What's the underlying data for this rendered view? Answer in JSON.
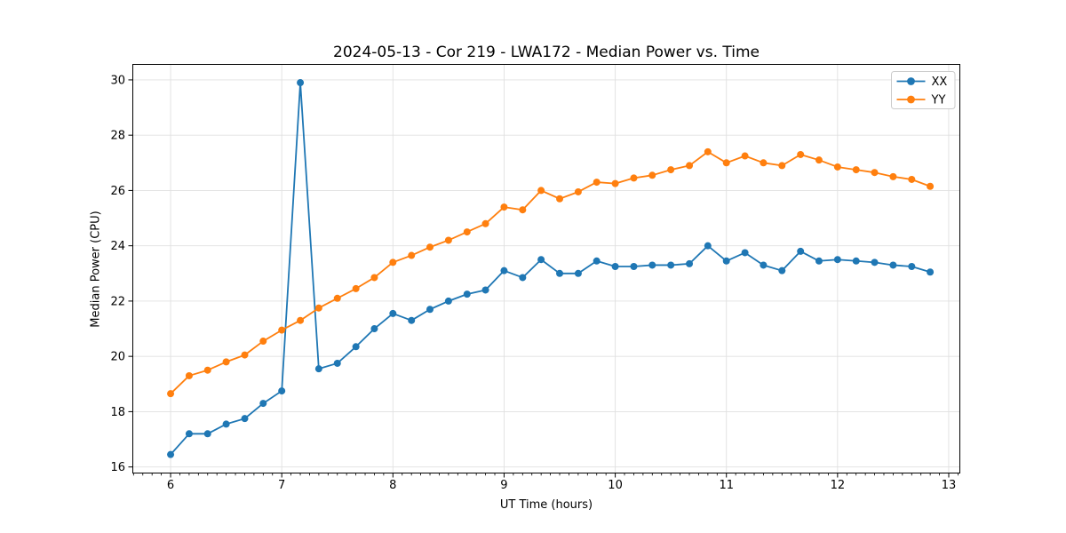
{
  "styles": {
    "background": "#ffffff",
    "grid_color": "#e0e0e0",
    "spine_color": "#000000",
    "tick_color": "#000000",
    "legend_border_color": "#cccccc",
    "legend_background": "#ffffff"
  },
  "chart_data": {
    "type": "line",
    "title": "2024-05-13 - Cor 219 - LWA172 - Median Power vs. Time",
    "xlabel": "UT Time (hours)",
    "ylabel": "Median Power (CPU)",
    "xlim": [
      5.66,
      13.1
    ],
    "ylim": [
      15.78,
      30.56
    ],
    "xticks": [
      6,
      7,
      8,
      9,
      10,
      11,
      12,
      13
    ],
    "yticks": [
      16,
      18,
      20,
      22,
      24,
      26,
      28,
      30
    ],
    "x_minor_tick_step": 0.0833,
    "grid": true,
    "legend_position": "upper right",
    "marker": "circle",
    "x": [
      6,
      6.167,
      6.333,
      6.5,
      6.667,
      6.833,
      7,
      7.167,
      7.333,
      7.5,
      7.667,
      7.833,
      8,
      8.167,
      8.333,
      8.5,
      8.667,
      8.833,
      9,
      9.167,
      9.333,
      9.5,
      9.667,
      9.833,
      10,
      10.167,
      10.333,
      10.5,
      10.667,
      10.833,
      11,
      11.167,
      11.333,
      11.5,
      11.667,
      11.833,
      12,
      12.167,
      12.333,
      12.5,
      12.667,
      12.833
    ],
    "series": [
      {
        "name": "XX",
        "color": "#1f77b4",
        "values": [
          16.45,
          17.2,
          17.2,
          17.55,
          17.75,
          18.3,
          18.75,
          29.9,
          19.55,
          19.75,
          20.35,
          21.0,
          21.55,
          21.3,
          21.7,
          22.0,
          22.25,
          22.4,
          23.1,
          22.85,
          23.5,
          23.0,
          23.0,
          23.45,
          23.25,
          23.25,
          23.3,
          23.3,
          23.35,
          24.0,
          23.45,
          23.75,
          23.3,
          23.1,
          23.8,
          23.45,
          23.5,
          23.45,
          23.4,
          23.3,
          23.25,
          23.05
        ]
      },
      {
        "name": "YY",
        "color": "#ff7f0e",
        "values": [
          18.65,
          19.3,
          19.5,
          19.8,
          20.05,
          20.55,
          20.95,
          21.3,
          21.75,
          22.1,
          22.45,
          22.85,
          23.4,
          23.65,
          23.95,
          24.2,
          24.5,
          24.8,
          25.4,
          25.3,
          26.0,
          25.7,
          25.95,
          26.3,
          26.25,
          26.45,
          26.55,
          26.75,
          26.9,
          27.4,
          27.0,
          27.25,
          27.0,
          26.9,
          27.3,
          27.1,
          26.85,
          26.75,
          26.65,
          26.5,
          26.4,
          26.15
        ]
      }
    ]
  }
}
